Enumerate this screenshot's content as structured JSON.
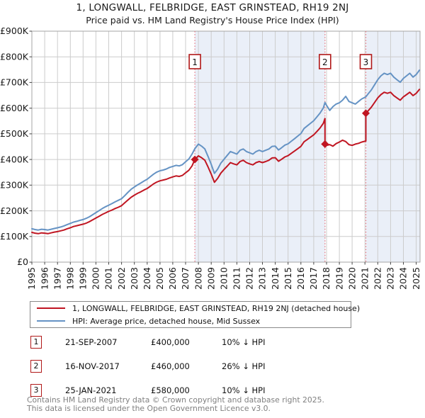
{
  "title": "1, LONGWALL, FELBRIDGE, EAST GRINSTEAD, RH19 2NJ",
  "subtitle": "Price paid vs. HM Land Registry's House Price Index (HPI)",
  "colors": {
    "price_line": "#c01622",
    "hpi_line": "#6593c4",
    "marker_dot": "#c01622",
    "dashed_line": "#e5737f",
    "band_fill": "#eaeff8",
    "grid": "#cccccc",
    "plot_border": "#a6a6a6",
    "tick": "#444444",
    "num_box_border": "#b01818"
  },
  "chart_data": {
    "type": "line",
    "xlim": [
      1995,
      2025.3
    ],
    "ylim_k": [
      0,
      900
    ],
    "grid": true,
    "x_ticks": [
      1995,
      1996,
      1997,
      1998,
      1999,
      2000,
      2001,
      2002,
      2003,
      2004,
      2005,
      2006,
      2007,
      2008,
      2009,
      2010,
      2011,
      2012,
      2013,
      2014,
      2015,
      2016,
      2017,
      2018,
      2019,
      2020,
      2021,
      2022,
      2023,
      2024,
      2025
    ],
    "y_ticks": [
      {
        "v": 0,
        "label": "£0"
      },
      {
        "v": 100,
        "label": "£100K"
      },
      {
        "v": 200,
        "label": "£200K"
      },
      {
        "v": 300,
        "label": "£300K"
      },
      {
        "v": 400,
        "label": "£400K"
      },
      {
        "v": 500,
        "label": "£500K"
      },
      {
        "v": 600,
        "label": "£600K"
      },
      {
        "v": 700,
        "label": "£700K"
      },
      {
        "v": 800,
        "label": "£800K"
      },
      {
        "v": 900,
        "label": "£900K"
      }
    ],
    "bands": [
      [
        2007.72,
        2017.88
      ],
      [
        2021.07,
        2025.3
      ]
    ],
    "markers": [
      {
        "label": "1",
        "x": 2007.72,
        "value_k": 400
      },
      {
        "label": "2",
        "x": 2017.88,
        "value_k": 460
      },
      {
        "label": "3",
        "x": 2021.07,
        "value_k": 580
      }
    ],
    "series": [
      {
        "name": "hpi",
        "color_key": "hpi_line",
        "points_k": [
          [
            1995,
            130
          ],
          [
            1995.25,
            127
          ],
          [
            1995.5,
            125
          ],
          [
            1995.75,
            128
          ],
          [
            1996,
            127
          ],
          [
            1996.25,
            125
          ],
          [
            1996.5,
            128
          ],
          [
            1996.75,
            131
          ],
          [
            1997,
            134
          ],
          [
            1997.25,
            137
          ],
          [
            1997.5,
            141
          ],
          [
            1997.75,
            146
          ],
          [
            1998,
            151
          ],
          [
            1998.25,
            156
          ],
          [
            1998.5,
            159
          ],
          [
            1998.75,
            163
          ],
          [
            1999,
            166
          ],
          [
            1999.25,
            171
          ],
          [
            1999.5,
            177
          ],
          [
            1999.75,
            185
          ],
          [
            2000,
            193
          ],
          [
            2000.25,
            201
          ],
          [
            2000.5,
            209
          ],
          [
            2000.75,
            216
          ],
          [
            2001,
            222
          ],
          [
            2001.25,
            228
          ],
          [
            2001.5,
            235
          ],
          [
            2001.75,
            241
          ],
          [
            2002,
            247
          ],
          [
            2002.25,
            259
          ],
          [
            2002.5,
            272
          ],
          [
            2002.75,
            284
          ],
          [
            2003,
            293
          ],
          [
            2003.25,
            301
          ],
          [
            2003.5,
            308
          ],
          [
            2003.75,
            316
          ],
          [
            2004,
            323
          ],
          [
            2004.25,
            333
          ],
          [
            2004.5,
            343
          ],
          [
            2004.75,
            351
          ],
          [
            2005,
            356
          ],
          [
            2005.25,
            359
          ],
          [
            2005.5,
            363
          ],
          [
            2005.75,
            369
          ],
          [
            2006,
            373
          ],
          [
            2006.25,
            377
          ],
          [
            2006.5,
            375
          ],
          [
            2006.75,
            380
          ],
          [
            2007,
            391
          ],
          [
            2007.25,
            402
          ],
          [
            2007.5,
            421
          ],
          [
            2007.72,
            442
          ],
          [
            2008,
            460
          ],
          [
            2008.25,
            452
          ],
          [
            2008.5,
            441
          ],
          [
            2008.75,
            412
          ],
          [
            2009,
            381
          ],
          [
            2009.25,
            346
          ],
          [
            2009.5,
            362
          ],
          [
            2009.75,
            386
          ],
          [
            2010,
            401
          ],
          [
            2010.25,
            416
          ],
          [
            2010.5,
            431
          ],
          [
            2010.75,
            426
          ],
          [
            2011,
            421
          ],
          [
            2011.25,
            436
          ],
          [
            2011.5,
            441
          ],
          [
            2011.75,
            431
          ],
          [
            2012,
            426
          ],
          [
            2012.25,
            421
          ],
          [
            2012.5,
            431
          ],
          [
            2012.75,
            436
          ],
          [
            2013,
            431
          ],
          [
            2013.25,
            436
          ],
          [
            2013.5,
            441
          ],
          [
            2013.75,
            451
          ],
          [
            2014,
            452
          ],
          [
            2014.25,
            437
          ],
          [
            2014.5,
            446
          ],
          [
            2014.75,
            456
          ],
          [
            2015,
            461
          ],
          [
            2015.25,
            471
          ],
          [
            2015.5,
            481
          ],
          [
            2015.75,
            491
          ],
          [
            2016,
            501
          ],
          [
            2016.25,
            521
          ],
          [
            2016.5,
            531
          ],
          [
            2016.75,
            541
          ],
          [
            2017,
            551
          ],
          [
            2017.25,
            566
          ],
          [
            2017.5,
            581
          ],
          [
            2017.75,
            601
          ],
          [
            2017.88,
            622
          ],
          [
            2018,
            611
          ],
          [
            2018.25,
            591
          ],
          [
            2018.5,
            606
          ],
          [
            2018.75,
            616
          ],
          [
            2019,
            621
          ],
          [
            2019.25,
            631
          ],
          [
            2019.5,
            646
          ],
          [
            2019.75,
            626
          ],
          [
            2020,
            621
          ],
          [
            2020.25,
            616
          ],
          [
            2020.5,
            626
          ],
          [
            2020.75,
            636
          ],
          [
            2021.07,
            644
          ],
          [
            2021.25,
            656
          ],
          [
            2021.5,
            671
          ],
          [
            2021.75,
            691
          ],
          [
            2022,
            711
          ],
          [
            2022.25,
            726
          ],
          [
            2022.5,
            736
          ],
          [
            2022.75,
            731
          ],
          [
            2023,
            736
          ],
          [
            2023.25,
            721
          ],
          [
            2023.5,
            711
          ],
          [
            2023.75,
            701
          ],
          [
            2024,
            716
          ],
          [
            2024.25,
            726
          ],
          [
            2024.5,
            736
          ],
          [
            2024.75,
            721
          ],
          [
            2025,
            731
          ],
          [
            2025.25,
            748
          ]
        ]
      },
      {
        "name": "price_paid",
        "color_key": "price_line",
        "points_k": [
          [
            1995,
            116
          ],
          [
            1995.25,
            113
          ],
          [
            1995.5,
            111
          ],
          [
            1995.75,
            114
          ],
          [
            1996,
            113
          ],
          [
            1996.25,
            111
          ],
          [
            1996.5,
            114
          ],
          [
            1996.75,
            117
          ],
          [
            1997,
            119
          ],
          [
            1997.25,
            122
          ],
          [
            1997.5,
            125
          ],
          [
            1997.75,
            130
          ],
          [
            1998,
            134
          ],
          [
            1998.25,
            139
          ],
          [
            1998.5,
            142
          ],
          [
            1998.75,
            145
          ],
          [
            1999,
            148
          ],
          [
            1999.25,
            152
          ],
          [
            1999.5,
            158
          ],
          [
            1999.75,
            165
          ],
          [
            2000,
            172
          ],
          [
            2000.25,
            179
          ],
          [
            2000.5,
            186
          ],
          [
            2000.75,
            192
          ],
          [
            2001,
            198
          ],
          [
            2001.25,
            203
          ],
          [
            2001.5,
            209
          ],
          [
            2001.75,
            214
          ],
          [
            2002,
            220
          ],
          [
            2002.25,
            231
          ],
          [
            2002.5,
            242
          ],
          [
            2002.75,
            253
          ],
          [
            2003,
            261
          ],
          [
            2003.25,
            268
          ],
          [
            2003.5,
            274
          ],
          [
            2003.75,
            281
          ],
          [
            2004,
            287
          ],
          [
            2004.25,
            296
          ],
          [
            2004.5,
            305
          ],
          [
            2004.75,
            312
          ],
          [
            2005,
            317
          ],
          [
            2005.25,
            320
          ],
          [
            2005.5,
            323
          ],
          [
            2005.75,
            328
          ],
          [
            2006,
            332
          ],
          [
            2006.25,
            336
          ],
          [
            2006.5,
            334
          ],
          [
            2006.75,
            338
          ],
          [
            2007,
            348
          ],
          [
            2007.25,
            358
          ],
          [
            2007.5,
            375
          ],
          [
            2007.72,
            400
          ],
          [
            2008,
            414
          ],
          [
            2008.25,
            407
          ],
          [
            2008.5,
            397
          ],
          [
            2008.75,
            371
          ],
          [
            2009,
            343
          ],
          [
            2009.25,
            311
          ],
          [
            2009.5,
            326
          ],
          [
            2009.75,
            347
          ],
          [
            2010,
            361
          ],
          [
            2010.25,
            374
          ],
          [
            2010.5,
            388
          ],
          [
            2010.75,
            383
          ],
          [
            2011,
            379
          ],
          [
            2011.25,
            392
          ],
          [
            2011.5,
            397
          ],
          [
            2011.75,
            388
          ],
          [
            2012,
            383
          ],
          [
            2012.25,
            379
          ],
          [
            2012.5,
            388
          ],
          [
            2012.75,
            392
          ],
          [
            2013,
            388
          ],
          [
            2013.25,
            392
          ],
          [
            2013.5,
            397
          ],
          [
            2013.75,
            406
          ],
          [
            2014,
            407
          ],
          [
            2014.25,
            393
          ],
          [
            2014.5,
            401
          ],
          [
            2014.75,
            410
          ],
          [
            2015,
            415
          ],
          [
            2015.25,
            424
          ],
          [
            2015.5,
            433
          ],
          [
            2015.75,
            442
          ],
          [
            2016,
            451
          ],
          [
            2016.25,
            469
          ],
          [
            2016.5,
            478
          ],
          [
            2016.75,
            487
          ],
          [
            2017,
            496
          ],
          [
            2017.25,
            509
          ],
          [
            2017.5,
            523
          ],
          [
            2017.75,
            541
          ],
          [
            2017.88,
            560
          ],
          [
            2017.88,
            460
          ],
          [
            2018,
            455
          ],
          [
            2018.25,
            458
          ],
          [
            2018.5,
            452
          ],
          [
            2018.75,
            462
          ],
          [
            2019,
            468
          ],
          [
            2019.25,
            475
          ],
          [
            2019.5,
            470
          ],
          [
            2019.75,
            458
          ],
          [
            2020,
            455
          ],
          [
            2020.25,
            460
          ],
          [
            2020.5,
            463
          ],
          [
            2020.75,
            468
          ],
          [
            2021.07,
            472
          ],
          [
            2021.07,
            580
          ],
          [
            2021.25,
            590
          ],
          [
            2021.5,
            604
          ],
          [
            2021.75,
            622
          ],
          [
            2022,
            640
          ],
          [
            2022.25,
            653
          ],
          [
            2022.5,
            662
          ],
          [
            2022.75,
            658
          ],
          [
            2023,
            662
          ],
          [
            2023.25,
            649
          ],
          [
            2023.5,
            640
          ],
          [
            2023.75,
            631
          ],
          [
            2024,
            644
          ],
          [
            2024.25,
            653
          ],
          [
            2024.5,
            662
          ],
          [
            2024.75,
            649
          ],
          [
            2025,
            658
          ],
          [
            2025.25,
            673
          ]
        ]
      }
    ]
  },
  "legend": {
    "price_label": "1, LONGWALL, FELBRIDGE, EAST GRINSTEAD, RH19 2NJ (detached house)",
    "hpi_label": "HPI: Average price, detached house, Mid Sussex"
  },
  "transactions": [
    {
      "num": "1",
      "date": "21-SEP-2007",
      "price": "£400,000",
      "hpi_diff": "10% ↓ HPI"
    },
    {
      "num": "2",
      "date": "16-NOV-2017",
      "price": "£460,000",
      "hpi_diff": "26% ↓ HPI"
    },
    {
      "num": "3",
      "date": "25-JAN-2021",
      "price": "£580,000",
      "hpi_diff": "10% ↓ HPI"
    }
  ],
  "footer": {
    "line1": "Contains HM Land Registry data © Crown copyright and database right 2025.",
    "line2": "This data is licensed under the Open Government Licence v3.0."
  }
}
